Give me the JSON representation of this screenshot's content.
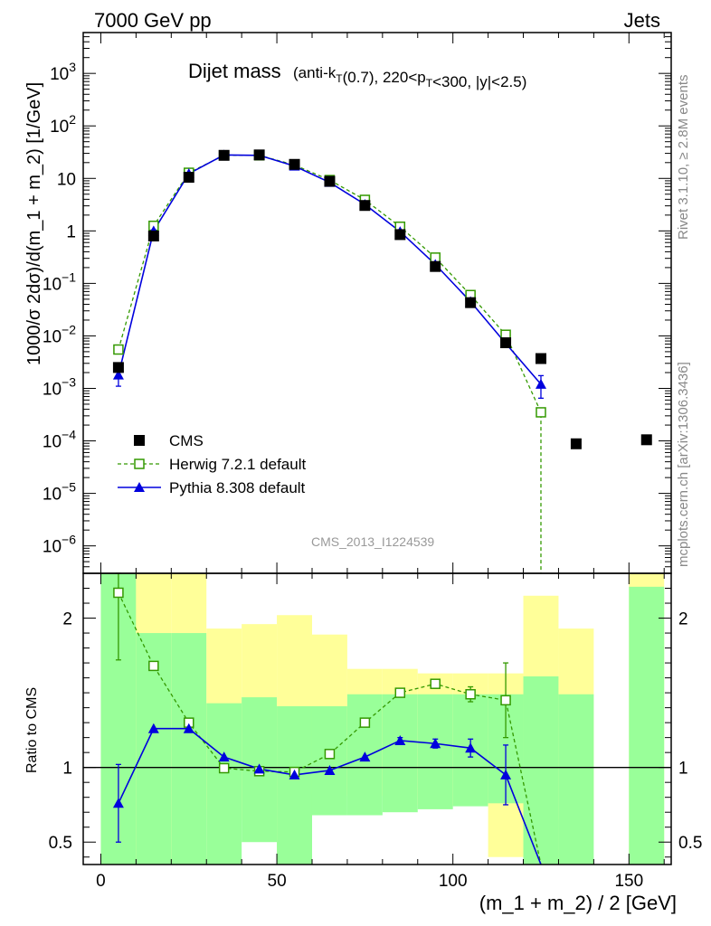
{
  "header": {
    "left": "7000 GeV pp",
    "right": "Jets"
  },
  "side": {
    "rivet": "Rivet 3.1.10, ≥ 2.8M events",
    "mcplots": "mcplots.cern.ch [arXiv:1306.3436]"
  },
  "watermark": "CMS_2013_I1224539",
  "title": {
    "main": "Dijet mass",
    "sub": "(anti-k_T(0.7), 220<p_T<300, |y|<2.5)"
  },
  "colors": {
    "cms": "#000000",
    "herwig": "#339900",
    "pythia": "#0000dd",
    "band_green": "#99ff99",
    "band_yellow": "#ffff99"
  },
  "chart_data": [
    {
      "type": "scatter",
      "panel": "main",
      "ylabel": "1000/σ 2dσ)/d(m_1 + m_2) [1/GeV]",
      "ylog": true,
      "ylim": [
        3e-07,
        6000
      ],
      "xlim": [
        -5,
        162
      ],
      "yticks": [
        {
          "v": 1e-06,
          "base": "10",
          "exp": "−6"
        },
        {
          "v": 1e-05,
          "base": "10",
          "exp": "−5"
        },
        {
          "v": 0.0001,
          "base": "10",
          "exp": "−4"
        },
        {
          "v": 0.001,
          "base": "10",
          "exp": "−3"
        },
        {
          "v": 0.01,
          "base": "10",
          "exp": "−2"
        },
        {
          "v": 0.1,
          "base": "10",
          "exp": "−1"
        },
        {
          "v": 1,
          "base": "1",
          "exp": ""
        },
        {
          "v": 10,
          "base": "10",
          "exp": ""
        },
        {
          "v": 100,
          "base": "10",
          "exp": "2"
        },
        {
          "v": 1000,
          "base": "10",
          "exp": "3"
        }
      ],
      "legend_position": "lower-left",
      "series": [
        {
          "name": "CMS",
          "style": "square",
          "x": [
            5,
            15,
            25,
            35,
            45,
            55,
            65,
            75,
            85,
            95,
            105,
            115,
            125,
            135,
            155
          ],
          "y": [
            0.0025,
            0.8,
            10.5,
            27.5,
            28,
            18.5,
            8.8,
            3.05,
            0.85,
            0.21,
            0.043,
            0.0074,
            0.0037,
            8.8e-05,
            0.000105
          ]
        },
        {
          "name": "Herwig 7.2.1 default",
          "style": "open-square-dashed",
          "x": [
            5,
            15,
            25,
            35,
            45,
            55,
            65,
            75,
            85,
            95,
            105,
            115,
            125
          ],
          "y": [
            0.0055,
            1.25,
            12.8,
            27.5,
            27.5,
            18,
            9.3,
            3.9,
            1.2,
            0.31,
            0.06,
            0.0105,
            0.00035
          ],
          "yerr": [
            0.0004,
            0.05,
            0.4,
            0.6,
            0.6,
            0.4,
            0.2,
            0.1,
            0.04,
            0.01,
            0.003,
            0.0008,
            5e-05
          ],
          "drop_to_bottom_at_x": 125
        },
        {
          "name": "Pythia 8.308 default",
          "style": "triangle-solid",
          "x": [
            5,
            15,
            25,
            35,
            45,
            55,
            65,
            75,
            85,
            95,
            105,
            115,
            125
          ],
          "y": [
            0.0018,
            1.0,
            12.3,
            28,
            27.5,
            17.2,
            8.4,
            3.2,
            0.97,
            0.23,
            0.045,
            0.0072,
            0.0012
          ],
          "yerr": [
            0.0007,
            0.04,
            0.3,
            0.6,
            0.6,
            0.4,
            0.2,
            0.08,
            0.03,
            0.008,
            0.003,
            0.0007,
            0.00055
          ]
        }
      ]
    },
    {
      "type": "line",
      "panel": "ratio",
      "xlabel": "(m_1 + m_2) / 2 [GeV]",
      "ylabel": "Ratio to CMS",
      "ylim": [
        0.35,
        2.3
      ],
      "xlim": [
        -5,
        162
      ],
      "xticks": [
        0,
        50,
        100,
        150
      ],
      "yticks": [
        0.5,
        1,
        2
      ],
      "reference_line": 1,
      "bands": {
        "x_edges": [
          [
            0,
            10
          ],
          [
            10,
            20
          ],
          [
            20,
            30
          ],
          [
            30,
            40
          ],
          [
            40,
            50
          ],
          [
            50,
            60
          ],
          [
            60,
            70
          ],
          [
            70,
            80
          ],
          [
            80,
            90
          ],
          [
            90,
            100
          ],
          [
            100,
            110
          ],
          [
            110,
            120
          ],
          [
            120,
            130
          ],
          [
            130,
            140
          ],
          [
            150,
            160
          ]
        ],
        "green_low": [
          0.35,
          0.35,
          0.35,
          0.35,
          0.5,
          0.35,
          0.68,
          0.68,
          0.7,
          0.72,
          0.74,
          0.76,
          0.35,
          0.35,
          0.35
        ],
        "green_high": [
          2.3,
          1.9,
          1.9,
          1.43,
          1.47,
          1.41,
          1.41,
          1.49,
          1.49,
          1.49,
          1.49,
          1.49,
          1.61,
          1.49,
          2.21
        ],
        "yellow_low": [
          0.35,
          0.35,
          0.35,
          0.72,
          0.65,
          0.35,
          0.82,
          0.81,
          0.81,
          0.75,
          0.75,
          0.4,
          0.35,
          0.65,
          0.35
        ],
        "yellow_high": [
          2.3,
          2.3,
          2.3,
          1.93,
          1.96,
          2.02,
          1.89,
          1.66,
          1.66,
          1.63,
          1.63,
          1.63,
          2.15,
          1.93,
          2.3
        ]
      },
      "series": [
        {
          "name": "Herwig 7.2.1 default",
          "style": "open-square-dashed",
          "x": [
            5,
            15,
            25,
            35,
            45,
            55,
            65,
            75,
            85,
            95,
            105,
            115,
            125
          ],
          "y": [
            2.17,
            1.68,
            1.3,
            0.995,
            0.975,
            0.97,
            1.09,
            1.3,
            1.5,
            1.56,
            1.49,
            1.45,
            0.1
          ],
          "yerr": [
            0.45,
            0.02,
            0.02,
            0.01,
            0.01,
            0.01,
            0.01,
            0.02,
            0.02,
            0.03,
            0.05,
            0.25,
            0
          ]
        },
        {
          "name": "Pythia 8.308 default",
          "style": "triangle-solid",
          "x": [
            5,
            15,
            25,
            35,
            45,
            55,
            65,
            75,
            85,
            95,
            105,
            115,
            125
          ],
          "y": [
            0.76,
            1.26,
            1.26,
            1.07,
            0.99,
            0.95,
            0.98,
            1.07,
            1.18,
            1.16,
            1.13,
            0.95,
            0.3
          ],
          "yerr": [
            0.26,
            0.01,
            0.01,
            0.01,
            0.01,
            0.01,
            0.01,
            0.01,
            0.02,
            0.03,
            0.06,
            0.2,
            0
          ]
        }
      ]
    }
  ]
}
